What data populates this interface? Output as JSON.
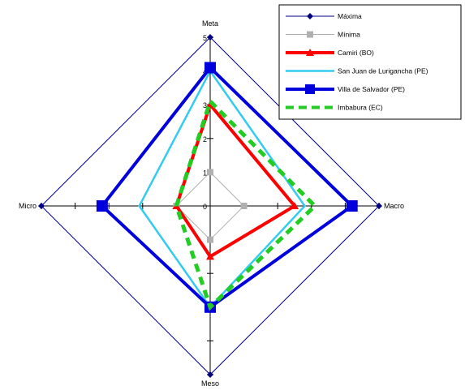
{
  "chart_data": {
    "type": "radar",
    "title": "",
    "axes": [
      "Meta",
      "Macro",
      "Meso",
      "Micro"
    ],
    "rlim": [
      0,
      5
    ],
    "ticks": [
      0,
      1,
      2,
      3,
      4,
      5
    ],
    "tick_labels": [
      "0",
      "1",
      "2",
      "3",
      "4",
      "5"
    ],
    "legend_position": "top-right",
    "series": [
      {
        "name": "Máxima",
        "values": [
          5,
          5,
          5,
          5
        ],
        "color": "#000080",
        "style": "solid-thin",
        "marker": "diamond"
      },
      {
        "name": "Mínima",
        "values": [
          1,
          1,
          1,
          1
        ],
        "color": "#b0b0b0",
        "style": "solid-thin",
        "marker": "square"
      },
      {
        "name": "Camiri (BO)",
        "values": [
          3,
          2.5,
          1.5,
          1
        ],
        "color": "#ff0000",
        "style": "solid-thick",
        "marker": "triangle"
      },
      {
        "name": "San Juan de Lurigancha (PE)",
        "values": [
          4,
          2.8,
          3,
          2.1
        ],
        "color": "#33ccee",
        "style": "solid-medium",
        "marker": "none"
      },
      {
        "name": "Villa de Salvador (PE)",
        "values": [
          4.1,
          4.2,
          3,
          3.2
        ],
        "color": "#0000dd",
        "style": "solid-thick",
        "marker": "square"
      },
      {
        "name": "Imbabura (EC)",
        "values": [
          3.1,
          3.1,
          3,
          1
        ],
        "color": "#22cc22",
        "style": "dashed-thick",
        "marker": "none"
      }
    ]
  }
}
